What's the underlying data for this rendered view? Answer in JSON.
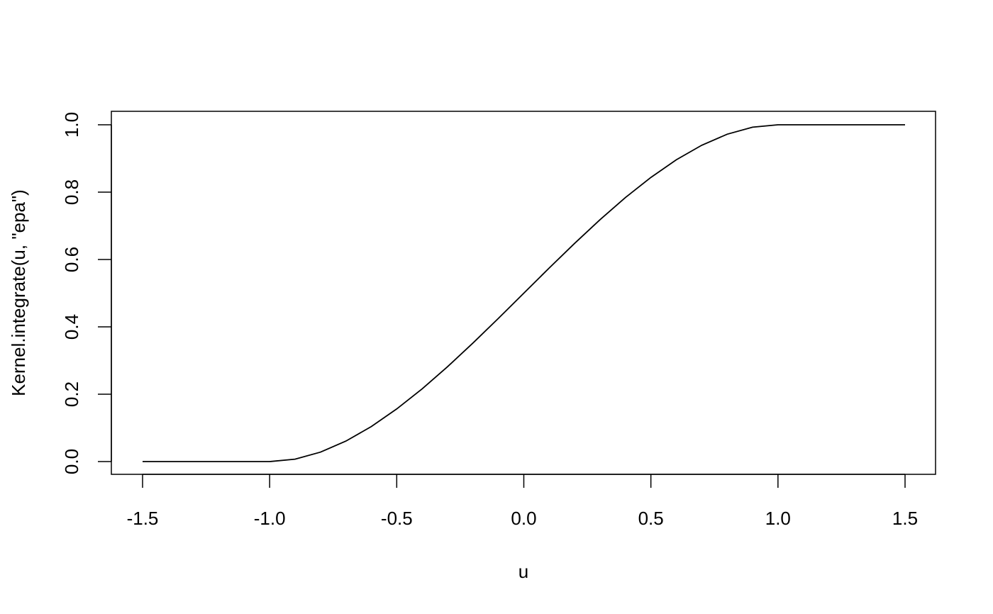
{
  "chart_data": {
    "type": "line",
    "title": "",
    "xlabel": "u",
    "ylabel": "Kernel.integrate(u, \"epa\")",
    "xlim": [
      -1.5,
      1.5
    ],
    "ylim": [
      0,
      1
    ],
    "xticks": [
      "-1.5",
      "-1.0",
      "-0.5",
      "0.0",
      "0.5",
      "1.0",
      "1.5"
    ],
    "xtick_values": [
      -1.5,
      -1.0,
      -0.5,
      0.0,
      0.5,
      1.0,
      1.5
    ],
    "yticks": [
      "0.0",
      "0.2",
      "0.4",
      "0.6",
      "0.8",
      "1.0"
    ],
    "ytick_values": [
      0,
      0.2,
      0.4,
      0.6,
      0.8,
      1.0
    ],
    "grid": false,
    "line_color": "#000000",
    "x": [
      -1.5,
      -1.4,
      -1.3,
      -1.2,
      -1.1,
      -1.0,
      -0.9,
      -0.8,
      -0.7,
      -0.6,
      -0.5,
      -0.4,
      -0.3,
      -0.2,
      -0.1,
      0.0,
      0.1,
      0.2,
      0.3,
      0.4,
      0.5,
      0.6,
      0.7,
      0.8,
      0.9,
      1.0,
      1.1,
      1.2,
      1.3,
      1.4,
      1.5
    ],
    "y": [
      0,
      0,
      0,
      0,
      0,
      0,
      0.00725,
      0.028,
      0.06075,
      0.104,
      0.15625,
      0.216,
      0.28175,
      0.352,
      0.42525,
      0.5,
      0.57475,
      0.648,
      0.71825,
      0.784,
      0.84375,
      0.896,
      0.93925,
      0.972,
      0.99275,
      1,
      1,
      1,
      1,
      1,
      1
    ]
  }
}
